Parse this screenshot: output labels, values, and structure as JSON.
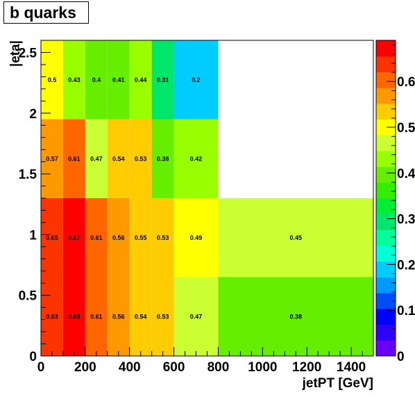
{
  "title": "b quarks",
  "chart_data": {
    "type": "heatmap",
    "title": "b quarks",
    "xlabel": "jetPT [GeV]",
    "ylabel": "|eta|",
    "xlim": [
      0,
      1500
    ],
    "ylim": [
      0,
      2.6
    ],
    "zlim": [
      0,
      0.69
    ],
    "x_ticks": [
      0,
      200,
      400,
      600,
      800,
      1000,
      1200,
      1400
    ],
    "x_tick_labels": [
      "0",
      "200",
      "400",
      "600",
      "800",
      "1000",
      "1200",
      "1400"
    ],
    "y_ticks": [
      0,
      0.5,
      1,
      1.5,
      2,
      2.5
    ],
    "y_tick_labels": [
      "0",
      "0.5",
      "1",
      "1.5",
      "2",
      "2.5"
    ],
    "z_ticks": [
      0,
      0.1,
      0.2,
      0.3,
      0.4,
      0.5,
      0.6
    ],
    "z_tick_labels": [
      "0",
      "0.1",
      "0.2",
      "0.3",
      "0.4",
      "0.5",
      "0.6"
    ],
    "x_bin_edges": [
      0,
      100,
      200,
      300,
      400,
      500,
      600,
      800,
      1500
    ],
    "y_bin_edges": [
      0,
      0.65,
      1.3,
      1.95,
      2.6
    ],
    "cells": [
      {
        "xi": 0,
        "yi": 0,
        "value": 0.63,
        "label": "0.63"
      },
      {
        "xi": 1,
        "yi": 0,
        "value": 0.68,
        "label": "0.68"
      },
      {
        "xi": 2,
        "yi": 0,
        "value": 0.61,
        "label": "0.61"
      },
      {
        "xi": 3,
        "yi": 0,
        "value": 0.56,
        "label": "0.56"
      },
      {
        "xi": 4,
        "yi": 0,
        "value": 0.54,
        "label": "0.54"
      },
      {
        "xi": 5,
        "yi": 0,
        "value": 0.53,
        "label": "0.53"
      },
      {
        "xi": 6,
        "yi": 0,
        "value": 0.47,
        "label": "0.47"
      },
      {
        "xi": 7,
        "yi": 0,
        "value": 0.38,
        "label": "0.38"
      },
      {
        "xi": 0,
        "yi": 1,
        "value": 0.65,
        "label": "0.65"
      },
      {
        "xi": 1,
        "yi": 1,
        "value": 0.67,
        "label": "0.67"
      },
      {
        "xi": 2,
        "yi": 1,
        "value": 0.61,
        "label": "0.61"
      },
      {
        "xi": 3,
        "yi": 1,
        "value": 0.56,
        "label": "0.56"
      },
      {
        "xi": 4,
        "yi": 1,
        "value": 0.55,
        "label": "0.55"
      },
      {
        "xi": 5,
        "yi": 1,
        "value": 0.53,
        "label": "0.53"
      },
      {
        "xi": 6,
        "yi": 1,
        "value": 0.49,
        "label": "0.49"
      },
      {
        "xi": 7,
        "yi": 1,
        "value": 0.45,
        "label": "0.45"
      },
      {
        "xi": 0,
        "yi": 2,
        "value": 0.57,
        "label": "0.57"
      },
      {
        "xi": 1,
        "yi": 2,
        "value": 0.61,
        "label": "0.61"
      },
      {
        "xi": 2,
        "yi": 2,
        "value": 0.47,
        "label": "0.47"
      },
      {
        "xi": 3,
        "yi": 2,
        "value": 0.54,
        "label": "0.54"
      },
      {
        "xi": 4,
        "yi": 2,
        "value": 0.53,
        "label": "0.53"
      },
      {
        "xi": 5,
        "yi": 2,
        "value": 0.38,
        "label": "0.38"
      },
      {
        "xi": 6,
        "yi": 2,
        "value": 0.42,
        "label": "0.42"
      },
      {
        "xi": 0,
        "yi": 3,
        "value": 0.5,
        "label": "0.5"
      },
      {
        "xi": 1,
        "yi": 3,
        "value": 0.43,
        "label": "0.43"
      },
      {
        "xi": 2,
        "yi": 3,
        "value": 0.4,
        "label": "0.4"
      },
      {
        "xi": 3,
        "yi": 3,
        "value": 0.41,
        "label": "0.41"
      },
      {
        "xi": 4,
        "yi": 3,
        "value": 0.44,
        "label": "0.44"
      },
      {
        "xi": 5,
        "yi": 3,
        "value": 0.31,
        "label": "0.31"
      },
      {
        "xi": 6,
        "yi": 3,
        "value": 0.2,
        "label": "0.2"
      }
    ],
    "palette": [
      "#6a00ff",
      "#2f00ff",
      "#0000ff",
      "#004cff",
      "#0099ff",
      "#00ccff",
      "#00ffd5",
      "#00ff99",
      "#00e66b",
      "#00ee33",
      "#33ee00",
      "#66ee00",
      "#99ff00",
      "#ccff33",
      "#ffff00",
      "#ffcc00",
      "#ff9900",
      "#ff6600",
      "#ff3300",
      "#ff0000"
    ],
    "grid": false,
    "colorbar": "right"
  }
}
